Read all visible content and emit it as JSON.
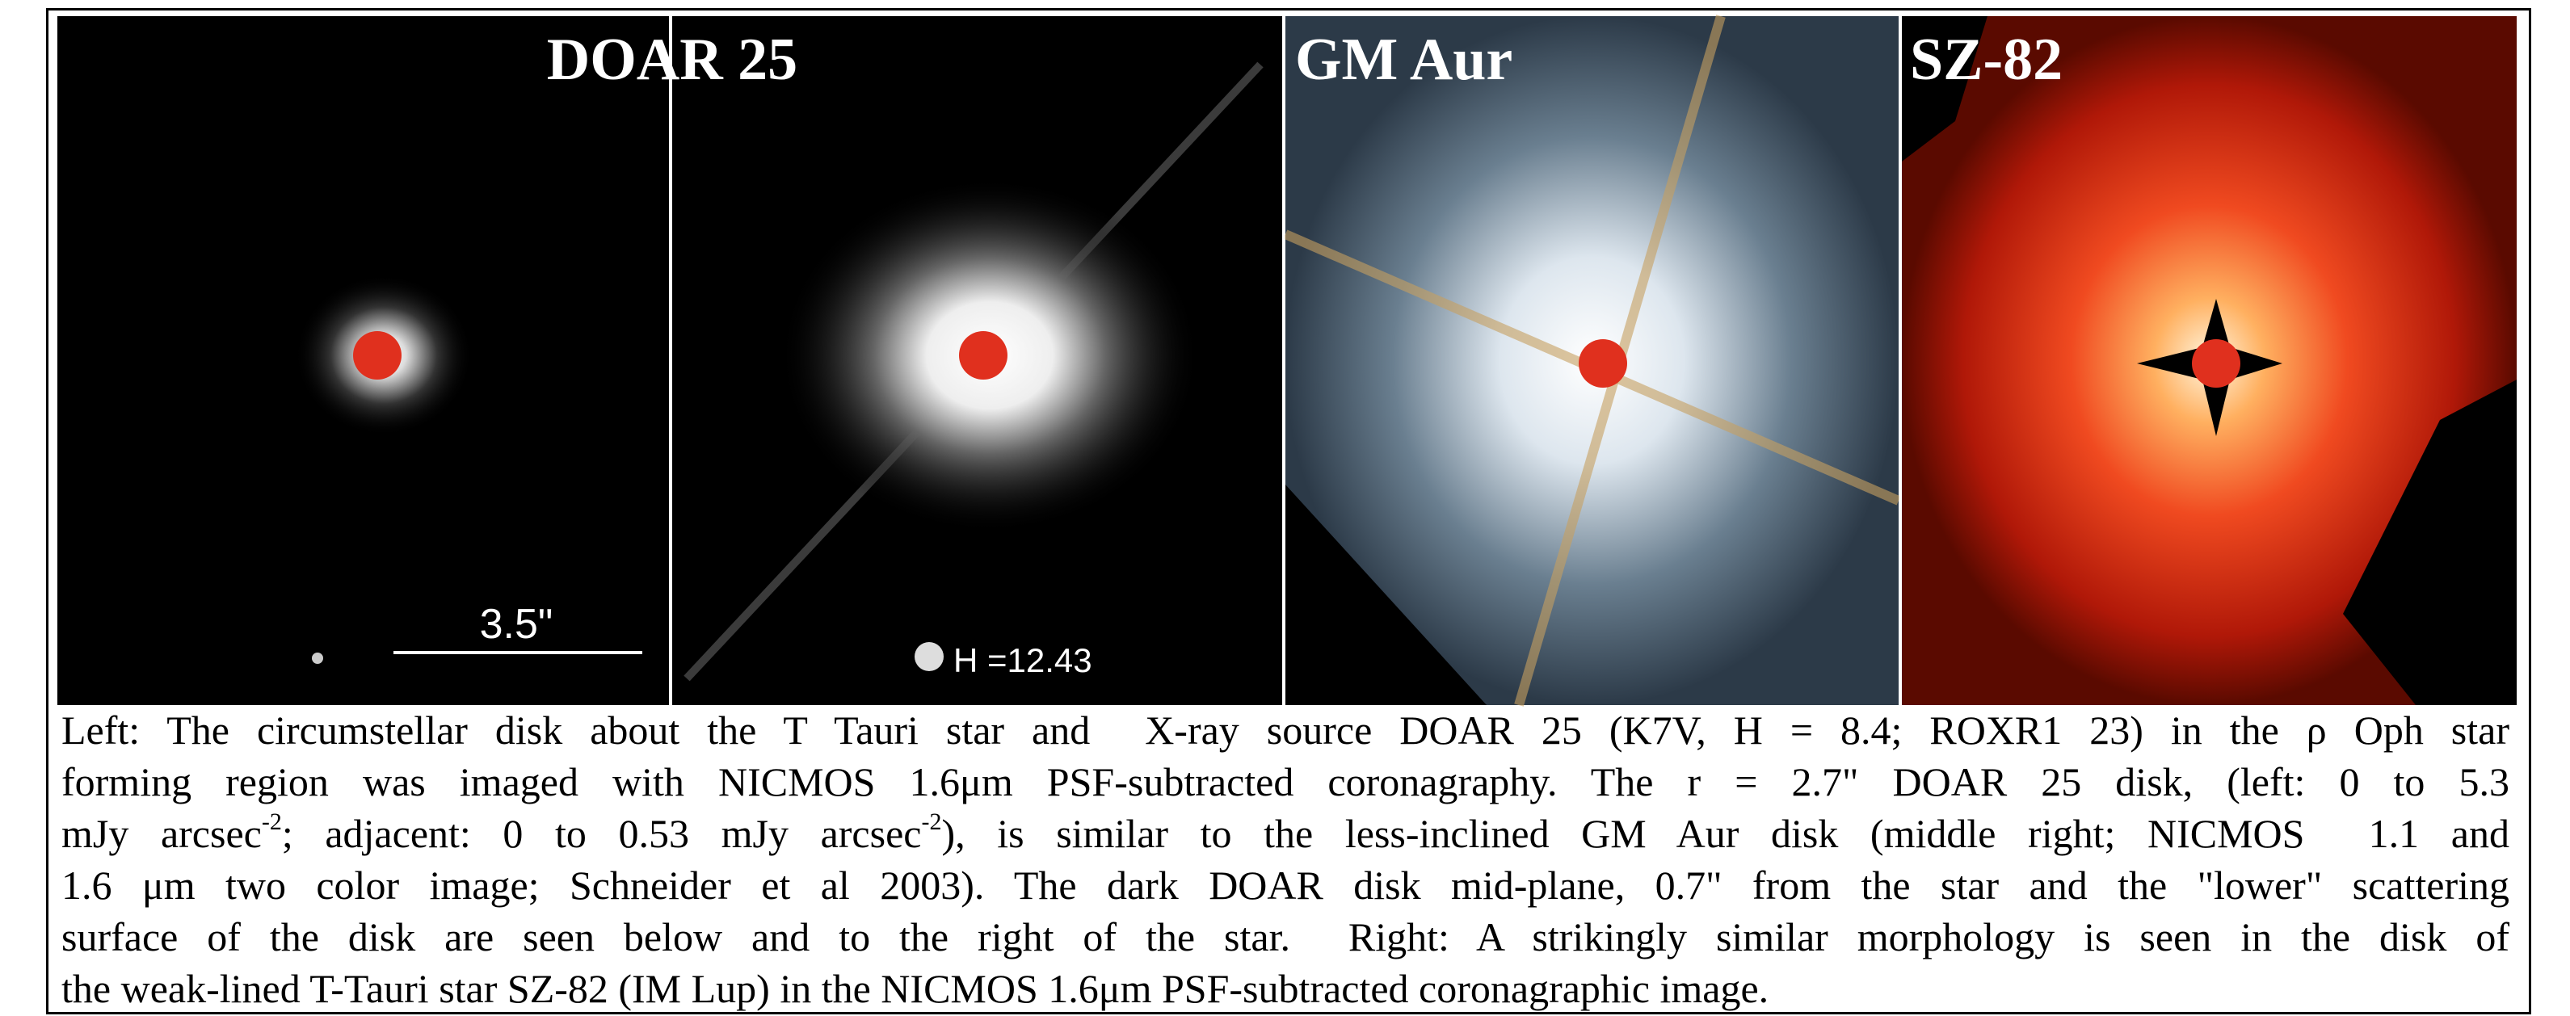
{
  "panels": [
    {
      "title": "DOAR 25",
      "label": "3.5\""
    },
    {
      "label": "H =12.43"
    },
    {
      "title": "GM Aur"
    },
    {
      "title": "SZ-82"
    }
  ],
  "caption": {
    "lines": [
      [
        {
          "text": "Left: The circumstellar disk about the T Tauri star and  X-ray source DOAR 25 (K7V, H = 8.4; ROXR1 23) in the ρ Oph star"
        }
      ],
      [
        {
          "text": "forming region was imaged with NICMOS 1.6μm PSF-subtracted coronagraphy. The r = 2.7\" DOAR 25 disk, (left: 0 to 5.3"
        }
      ],
      [
        {
          "text": "mJy arcsec"
        },
        {
          "text": "-2",
          "sup": true
        },
        {
          "text": "; adjacent: 0 to 0.53 mJy arcsec"
        },
        {
          "text": "-2",
          "sup": true
        },
        {
          "text": "), is similar to the less-inclined GM Aur disk (middle right; NICMOS  1.1 and"
        }
      ],
      [
        {
          "text": "1.6 μm two color image; Schneider et al 2003). The dark DOAR disk mid-plane, 0.7\" from the star and the \"lower\" scattering"
        }
      ],
      [
        {
          "text": "surface of the disk are seen below and to the right of the star.  Right: A strikingly similar morphology is seen in the disk of"
        }
      ],
      [
        {
          "text": "the weak-lined T-Tauri star SZ-82 (IM Lup) in the NICMOS 1.6μm PSF-subtracted coronagraphic image."
        }
      ]
    ]
  }
}
